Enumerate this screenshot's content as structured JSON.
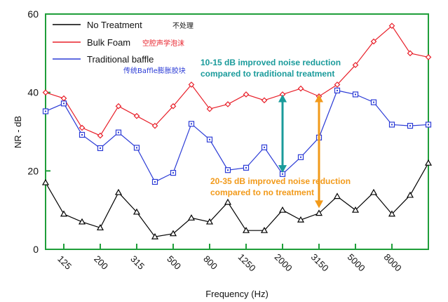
{
  "chart_data": {
    "type": "line",
    "title": "",
    "xlabel": "Frequency (Hz)",
    "ylabel": "NR - dB",
    "ylim": [
      0,
      60
    ],
    "yticks": [
      0,
      20,
      40,
      60
    ],
    "grid": false,
    "legend_position": "top-left",
    "x_points": 22,
    "x_tick_labels": [
      "125",
      "200",
      "315",
      "500",
      "800",
      "1250",
      "2000",
      "3150",
      "5000",
      "8000"
    ],
    "x_tick_indices": [
      1,
      3,
      5,
      7,
      9,
      11,
      13,
      15,
      17,
      19
    ],
    "series": [
      {
        "name": "No Treatment",
        "name_cn": "不处理",
        "color": "#000000",
        "marker": "triangle",
        "values": [
          17,
          9,
          7,
          5.5,
          14.5,
          9.5,
          3.2,
          4,
          8,
          7,
          12,
          4.8,
          4.8,
          10,
          7.5,
          9.2,
          13.5,
          10,
          14.5,
          9,
          13.8,
          22
        ]
      },
      {
        "name": "Bulk Foam",
        "name_cn": "空腔声学泡沫",
        "color": "#e8202a",
        "marker": "diamond",
        "values": [
          40,
          38.5,
          31,
          29,
          36.5,
          34,
          31.5,
          36.5,
          42,
          35.8,
          37,
          39.5,
          38,
          39.5,
          41,
          39,
          42,
          47,
          53,
          57,
          50,
          49
        ]
      },
      {
        "name": "Traditional baffle",
        "name_cn": "传统Baffle膨胀胶块",
        "color": "#2b3bd6",
        "marker": "square",
        "values": [
          35.2,
          37.2,
          29.2,
          25.8,
          29.8,
          25.9,
          17.2,
          19.5,
          32,
          28,
          20.2,
          20.8,
          26,
          19.2,
          23.5,
          28.5,
          40.5,
          39.5,
          37.5,
          31.8,
          31.5,
          31.8
        ]
      }
    ],
    "annotations": [
      {
        "text_line1": "10-15 dB improved noise reduction",
        "text_line2": "compared to traditional treatment",
        "color": "#1a9b9b",
        "arrow_index": 13,
        "from": 19.5,
        "to": 39.5
      },
      {
        "text_line1": "20-35 dB improved noise reduction",
        "text_line2": "compared to no treatment",
        "color": "#f29a1a",
        "arrow_index": 15,
        "from": 10.5,
        "to": 39.5
      }
    ]
  }
}
